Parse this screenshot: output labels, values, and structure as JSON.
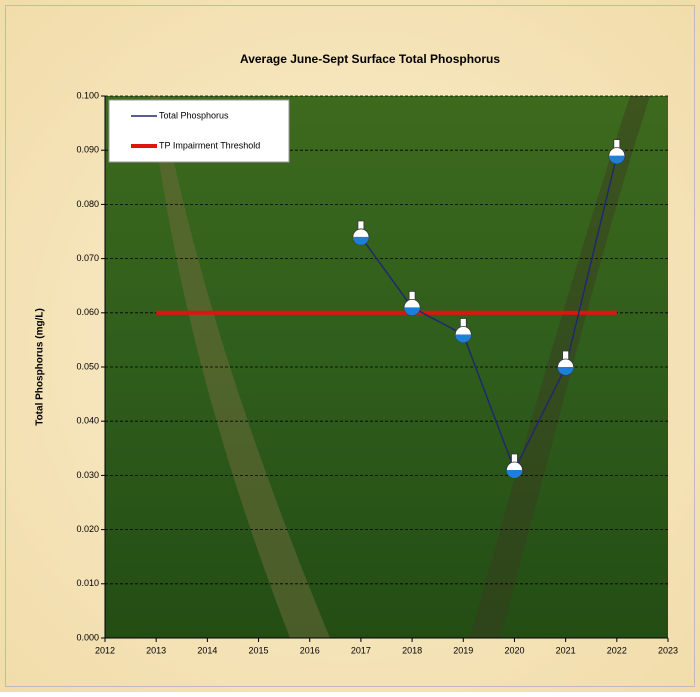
{
  "chart_data": {
    "type": "line",
    "title": "Average June-Sept Surface Total Phosphorus",
    "y_label": "Total Phosphorus (mg/L)",
    "series": [
      {
        "name": "Total Phosphorus",
        "color": "#1f2a6b",
        "x": [
          2017,
          2018,
          2019,
          2020,
          2021,
          2022
        ],
        "values": [
          0.074,
          0.061,
          0.056,
          0.031,
          0.05,
          0.089
        ]
      },
      {
        "name": "TP Impairment Threshold",
        "color": "#e0140f",
        "x": [
          2013,
          2022
        ],
        "values": [
          0.06,
          0.06
        ]
      }
    ],
    "xlim": [
      2012,
      2023
    ],
    "xticks": [
      2012,
      2013,
      2014,
      2015,
      2016,
      2017,
      2018,
      2019,
      2020,
      2021,
      2022,
      2023
    ],
    "ylim": [
      0,
      0.1
    ],
    "yticks": [
      {
        "value": 0,
        "label": "0.000"
      },
      {
        "value": 0.01,
        "label": "0.010"
      },
      {
        "value": 0.02,
        "label": "0.020"
      },
      {
        "value": 0.03,
        "label": "0.030"
      },
      {
        "value": 0.04,
        "label": "0.040"
      },
      {
        "value": 0.05,
        "label": "0.050"
      },
      {
        "value": 0.06,
        "label": "0.060"
      },
      {
        "value": 0.07,
        "label": "0.070"
      },
      {
        "value": 0.08,
        "label": "0.080"
      },
      {
        "value": 0.09,
        "label": "0.090"
      },
      {
        "value": 0.1,
        "label": "0.100"
      }
    ],
    "grid": true,
    "legend": "top-left"
  }
}
